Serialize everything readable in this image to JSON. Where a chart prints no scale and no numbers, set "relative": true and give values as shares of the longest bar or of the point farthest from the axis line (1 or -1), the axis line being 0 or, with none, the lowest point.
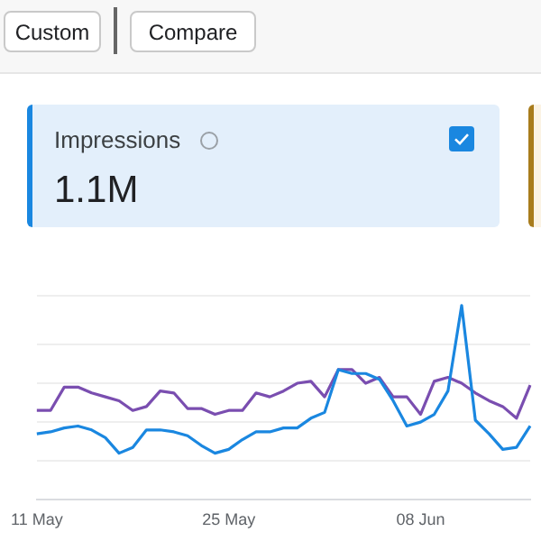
{
  "chart_data": {
    "type": "line",
    "relative": true,
    "grid": "y",
    "marker": "none",
    "line_style": "solid",
    "legend": "top left",
    "annotations": [
      "Custom",
      "Compare",
      "1.1M"
    ],
    "categories": [
      "11 May",
      null,
      null,
      null,
      null,
      null,
      null,
      null,
      null,
      null,
      null,
      null,
      null,
      null,
      "25 May",
      null,
      null,
      null,
      null,
      null,
      null,
      null,
      null,
      null,
      null,
      null,
      null,
      null,
      "08 Jun",
      null,
      null,
      null,
      null,
      null,
      null,
      null,
      null
    ],
    "series": [
      {
        "name": "Impressions",
        "color": "#1a87e0",
        "values": [
          0.34,
          0.35,
          0.37,
          0.38,
          0.36,
          0.32,
          0.24,
          0.27,
          0.36,
          0.36,
          0.35,
          0.33,
          0.28,
          0.24,
          0.26,
          0.31,
          0.35,
          0.35,
          0.37,
          0.37,
          0.42,
          0.45,
          0.67,
          0.65,
          0.65,
          0.62,
          0.51,
          0.38,
          0.4,
          0.44,
          0.56,
          1,
          0.41,
          0.34,
          0.26,
          0.27,
          0.38
        ]
      },
      {
        "color": "#7a4eb0",
        "values": [
          0.46,
          0.46,
          0.58,
          0.58,
          0.55,
          0.53,
          0.51,
          0.46,
          0.48,
          0.56,
          0.55,
          0.47,
          0.47,
          0.44,
          0.46,
          0.46,
          0.55,
          0.53,
          0.56,
          0.6,
          0.61,
          0.53,
          0.67,
          0.67,
          0.6,
          0.63,
          0.53,
          0.53,
          0.44,
          0.61,
          0.63,
          0.6,
          0.55,
          0.51,
          0.48,
          0.42,
          0.59
        ]
      }
    ]
  }
}
